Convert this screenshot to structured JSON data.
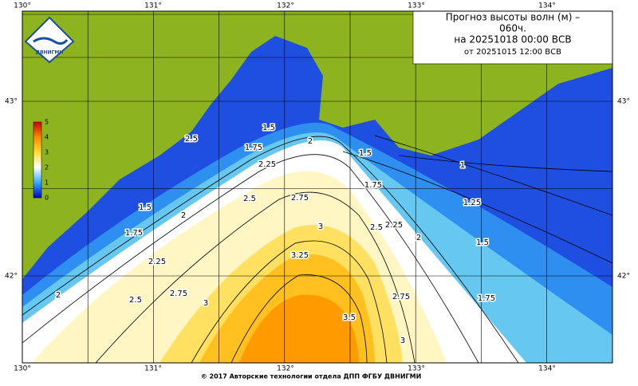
{
  "header": {
    "title_lines": [
      "Прогноз высоты волн (м) –",
      "060ч.",
      "на 20251018 00:00 ВСВ",
      "от 20251015 12:00 ВСВ"
    ]
  },
  "logo": {
    "text": "ДВНИГМИ"
  },
  "axes": {
    "lon_labels": [
      "130°",
      "131°",
      "132°",
      "133°",
      "134°"
    ],
    "lat_labels": [
      "43°",
      "42°"
    ]
  },
  "colorbar": {
    "labels": [
      "0",
      "1",
      "2",
      "3",
      "4",
      "5"
    ]
  },
  "contour_labels": [
    2.5,
    1.5,
    1.75,
    2,
    2.25,
    2.5,
    2.75,
    3,
    3.25,
    3.5,
    3,
    2.75,
    2.5,
    2.25,
    2,
    1.5,
    1.75,
    1,
    1.25,
    1.5,
    1.75,
    1.5,
    2,
    1.75,
    2.25,
    2,
    2.5,
    2.75,
    3
  ],
  "footer": {
    "text": "© 2017 Авторские технологии отдела ДПП ФГБУ ДВНИГМИ"
  }
}
